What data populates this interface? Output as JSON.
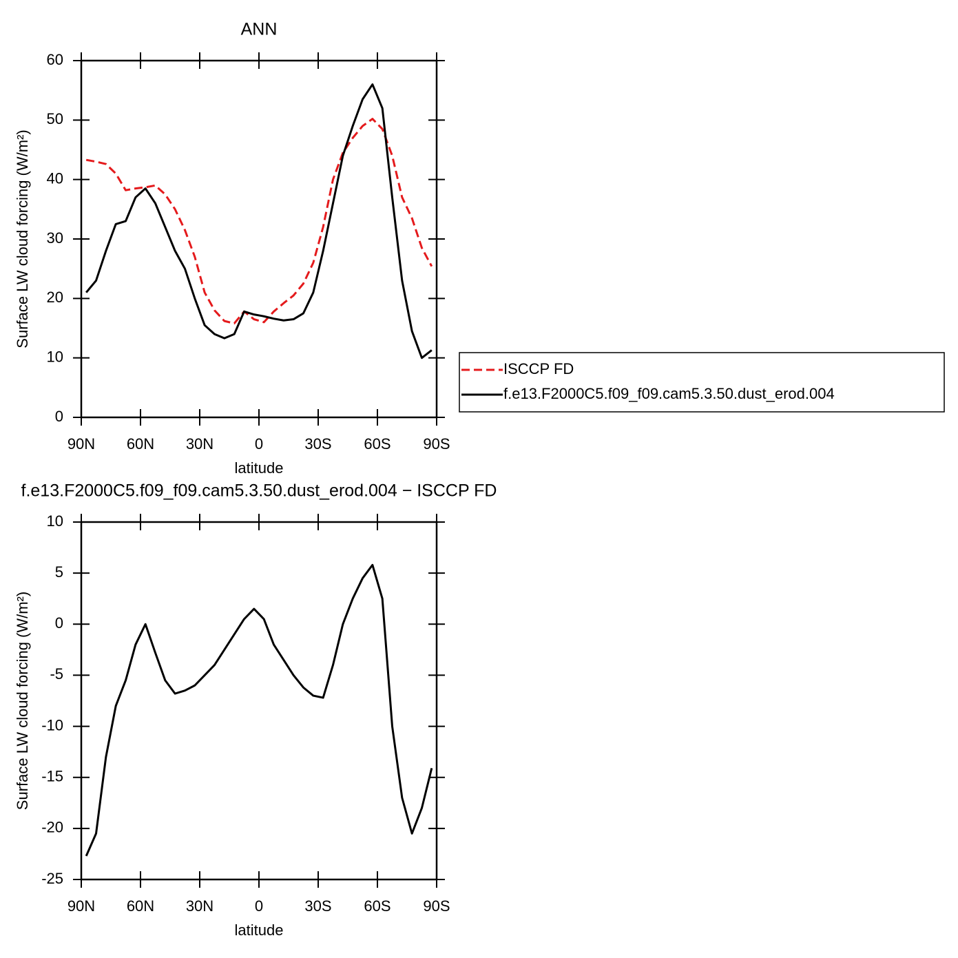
{
  "chart_data": [
    {
      "type": "line",
      "title": "ANN",
      "xlabel": "latitude",
      "ylabel": "Surface LW cloud forcing (W/m²)",
      "x": [
        87.5,
        82.5,
        77.5,
        72.5,
        67.5,
        62.5,
        57.5,
        52.5,
        47.5,
        42.5,
        37.5,
        32.5,
        27.5,
        22.5,
        17.5,
        12.5,
        7.5,
        2.5,
        -2.5,
        -7.5,
        -12.5,
        -17.5,
        -22.5,
        -27.5,
        -32.5,
        -37.5,
        -42.5,
        -47.5,
        -52.5,
        -57.5,
        -62.5,
        -67.5,
        -72.5,
        -77.5,
        -82.5,
        -87.5
      ],
      "series": [
        {
          "name": "ISCCP FD",
          "color": "#e41a1c",
          "dash": true,
          "values": [
            43.3,
            43,
            42.6,
            41,
            38.2,
            38.5,
            38.7,
            39,
            37.5,
            35,
            31.5,
            27,
            21,
            18,
            16.2,
            15.8,
            17.8,
            16.5,
            16,
            17.8,
            19.2,
            20.5,
            22.5,
            26,
            32,
            40,
            44.5,
            47,
            49,
            50.2,
            48.5,
            44,
            37,
            33.5,
            28.5,
            25.4
          ]
        },
        {
          "name": "f.e13.F2000C5.f09_f09.cam5.3.50.dust_erod.004",
          "color": "#000000",
          "dash": false,
          "values": [
            21,
            23,
            28,
            32.5,
            33,
            37,
            38.5,
            36,
            32,
            28,
            25,
            20,
            15.5,
            14,
            13.3,
            14,
            17.8,
            17.3,
            17,
            16.6,
            16.3,
            16.5,
            17.5,
            21,
            28,
            36,
            44,
            49,
            53.5,
            56,
            52,
            37,
            23,
            14.5,
            10,
            11.3
          ]
        }
      ],
      "xlim": [
        90,
        -90
      ],
      "xticks": [
        {
          "value": 90,
          "label": "90N"
        },
        {
          "value": 60,
          "label": "60N"
        },
        {
          "value": 30,
          "label": "30N"
        },
        0,
        {
          "value": -30,
          "label": "30S"
        },
        {
          "value": -60,
          "label": "60S"
        },
        {
          "value": -90,
          "label": "90S"
        }
      ],
      "ylim": [
        0,
        60
      ],
      "yticks": [
        0,
        10,
        20,
        30,
        40,
        50,
        60
      ],
      "legend": "outside-right"
    },
    {
      "type": "line",
      "title": "f.e13.F2000C5.f09_f09.cam5.3.50.dust_erod.004 − ISCCP FD",
      "xlabel": "latitude",
      "ylabel": "Surface LW cloud forcing (W/m²)",
      "x": [
        87.5,
        82.5,
        77.5,
        72.5,
        67.5,
        62.5,
        57.5,
        52.5,
        47.5,
        42.5,
        37.5,
        32.5,
        27.5,
        22.5,
        17.5,
        12.5,
        7.5,
        2.5,
        -2.5,
        -7.5,
        -12.5,
        -17.5,
        -22.5,
        -27.5,
        -32.5,
        -37.5,
        -42.5,
        -47.5,
        -52.5,
        -57.5,
        -62.5,
        -67.5,
        -72.5,
        -77.5,
        -82.5,
        -87.5
      ],
      "series": [
        {
          "color": "#000000",
          "dash": false,
          "values": [
            -22.7,
            -20.5,
            -13,
            -8,
            -5.5,
            -2,
            0,
            -2.8,
            -5.5,
            -6.8,
            -6.5,
            -6,
            -5,
            -4,
            -2.5,
            -1,
            0.5,
            1.5,
            0.5,
            -2,
            -3.5,
            -5,
            -6.2,
            -7,
            -7.2,
            -4,
            0,
            2.5,
            4.5,
            5.8,
            2.5,
            -10,
            -17,
            -20.5,
            -18,
            -14.1
          ]
        }
      ],
      "xlim": [
        90,
        -90
      ],
      "xticks": [
        {
          "value": 90,
          "label": "90N"
        },
        {
          "value": 60,
          "label": "60N"
        },
        {
          "value": 30,
          "label": "30N"
        },
        0,
        {
          "value": -30,
          "label": "30S"
        },
        {
          "value": -60,
          "label": "60S"
        },
        {
          "value": -90,
          "label": "90S"
        }
      ],
      "ylim": [
        -25,
        10
      ],
      "yticks": [
        -25,
        -20,
        -15,
        -10,
        -5,
        0,
        5,
        10
      ]
    }
  ]
}
